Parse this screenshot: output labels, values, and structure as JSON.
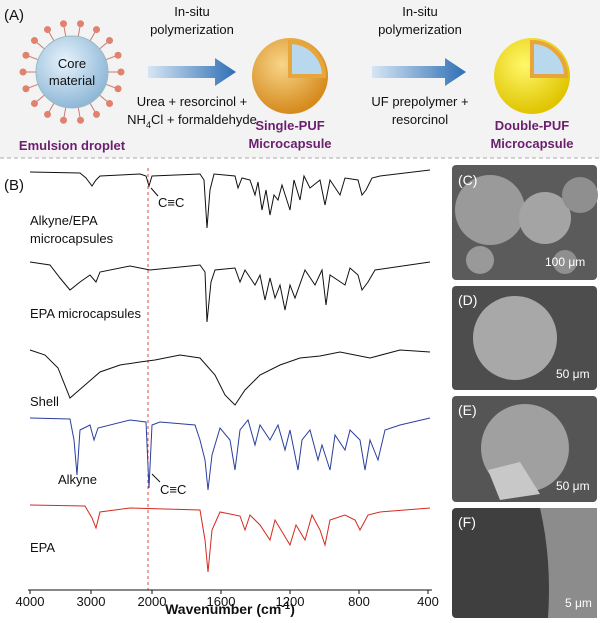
{
  "panel_a": {
    "label": "(A)",
    "droplet": {
      "text": [
        "Core",
        "material"
      ],
      "caption": "Emulsion droplet"
    },
    "step1": {
      "above": [
        "In-situ",
        "polymerization"
      ],
      "below1": "Urea + resorcinol +",
      "below2": [
        "NH",
        "4",
        "Cl + formaldehyde"
      ]
    },
    "single": [
      "Single-PUF",
      "Microcapsule"
    ],
    "step2": {
      "above": [
        "In-situ",
        "polymerization"
      ],
      "below": [
        "UF prepolymer +",
        "resorcinol"
      ]
    },
    "double": [
      "Double-PUF",
      "Microcapsule"
    ]
  },
  "panel_b": {
    "label": "(B)",
    "xlim": [
      4000,
      400
    ],
    "scale_break": 2000,
    "xticks": [
      4000,
      3000,
      2000,
      1600,
      1200,
      800,
      400
    ],
    "xlabel": [
      "Wavenumber (cm",
      "-1",
      ")"
    ],
    "spectra": [
      [
        "Alkyne/EPA",
        "microcapsules"
      ],
      [
        "EPA microcapsules"
      ],
      [
        "Shell"
      ],
      [
        "Alkyne"
      ],
      [
        "EPA"
      ]
    ],
    "annotations": [
      "C≡C",
      "C≡C"
    ]
  },
  "sem": [
    {
      "label": "(C)",
      "scale": "100 μm"
    },
    {
      "label": "(D)",
      "scale": "50 μm"
    },
    {
      "label": "(E)",
      "scale": "50 μm"
    },
    {
      "label": "(F)",
      "scale": "5 μm"
    }
  ]
}
